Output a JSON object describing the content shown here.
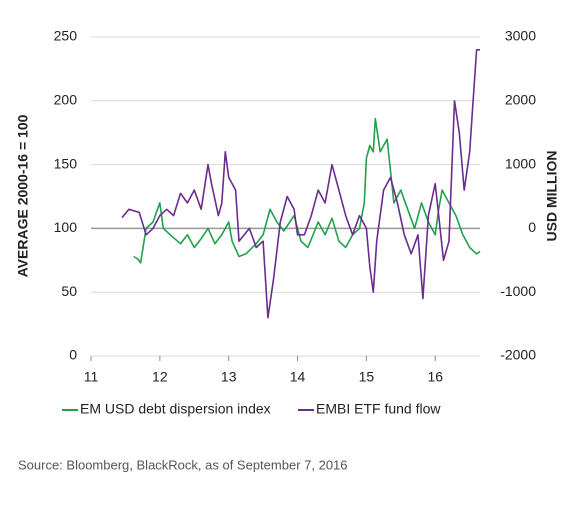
{
  "chart_data": {
    "type": "line",
    "ylabel": "AVERAGE 2000-16 = 100",
    "y2label": "USD MILLION",
    "xlim": [
      11,
      16.65
    ],
    "xticks": [
      11,
      12,
      13,
      14,
      15,
      16
    ],
    "ylim": [
      0,
      250
    ],
    "yticks": [
      0,
      50,
      100,
      150,
      200,
      250
    ],
    "y2lim": [
      -2000,
      3000
    ],
    "y2ticks": [
      -2000,
      -1000,
      0,
      1000,
      2000,
      3000
    ],
    "grid": true,
    "legend": "bottom",
    "reference_line": 100,
    "series": [
      {
        "name": "EM USD debt dispersion index",
        "color": "#1ea24a",
        "x": [
          11.62,
          11.68,
          11.72,
          11.8,
          11.9,
          12.0,
          12.05,
          12.15,
          12.3,
          12.4,
          12.5,
          12.6,
          12.7,
          12.8,
          12.9,
          13.0,
          13.05,
          13.15,
          13.25,
          13.4,
          13.5,
          13.6,
          13.7,
          13.8,
          13.95,
          14.05,
          14.15,
          14.3,
          14.4,
          14.5,
          14.6,
          14.7,
          14.8,
          14.9,
          14.97,
          15.0,
          15.05,
          15.1,
          15.13,
          15.2,
          15.3,
          15.4,
          15.5,
          15.6,
          15.7,
          15.8,
          15.9,
          16.0,
          16.05,
          16.1,
          16.2,
          16.3,
          16.4,
          16.5,
          16.6,
          16.65
        ],
        "values": [
          78,
          76,
          73,
          100,
          105,
          120,
          100,
          95,
          88,
          95,
          85,
          92,
          100,
          88,
          95,
          105,
          90,
          78,
          80,
          88,
          95,
          115,
          105,
          98,
          110,
          90,
          85,
          105,
          95,
          108,
          90,
          85,
          95,
          100,
          120,
          155,
          165,
          160,
          186,
          160,
          170,
          120,
          130,
          115,
          100,
          120,
          105,
          95,
          115,
          130,
          120,
          110,
          95,
          85,
          80,
          82
        ]
      },
      {
        "name": "EMBI ETF fund flow",
        "color": "#6a2c8f",
        "axis": "y2",
        "x": [
          11.45,
          11.55,
          11.7,
          11.8,
          11.9,
          12.0,
          12.1,
          12.2,
          12.3,
          12.4,
          12.5,
          12.6,
          12.7,
          12.75,
          12.85,
          12.9,
          12.95,
          13.0,
          13.1,
          13.15,
          13.3,
          13.4,
          13.5,
          13.57,
          13.65,
          13.75,
          13.85,
          13.95,
          14.0,
          14.1,
          14.2,
          14.3,
          14.4,
          14.5,
          14.6,
          14.7,
          14.8,
          14.9,
          15.0,
          15.05,
          15.1,
          15.15,
          15.25,
          15.35,
          15.45,
          15.55,
          15.65,
          15.75,
          15.82,
          15.9,
          16.0,
          16.05,
          16.12,
          16.2,
          16.28,
          16.35,
          16.42,
          16.5,
          16.55,
          16.6,
          16.65
        ],
        "values": [
          170,
          300,
          250,
          -100,
          0,
          200,
          300,
          200,
          550,
          400,
          600,
          300,
          1000,
          700,
          200,
          400,
          1200,
          800,
          600,
          -200,
          0,
          -300,
          -200,
          -1400,
          -800,
          100,
          500,
          300,
          -100,
          -100,
          200,
          600,
          400,
          1000,
          600,
          200,
          -100,
          200,
          0,
          -600,
          -1000,
          -200,
          600,
          800,
          400,
          -100,
          -400,
          -100,
          -1100,
          200,
          700,
          200,
          -500,
          -200,
          2000,
          1500,
          600,
          1200,
          2000,
          2800,
          2800
        ]
      }
    ]
  },
  "source": "Source: Bloomberg, BlackRock, as of September 7, 2016"
}
